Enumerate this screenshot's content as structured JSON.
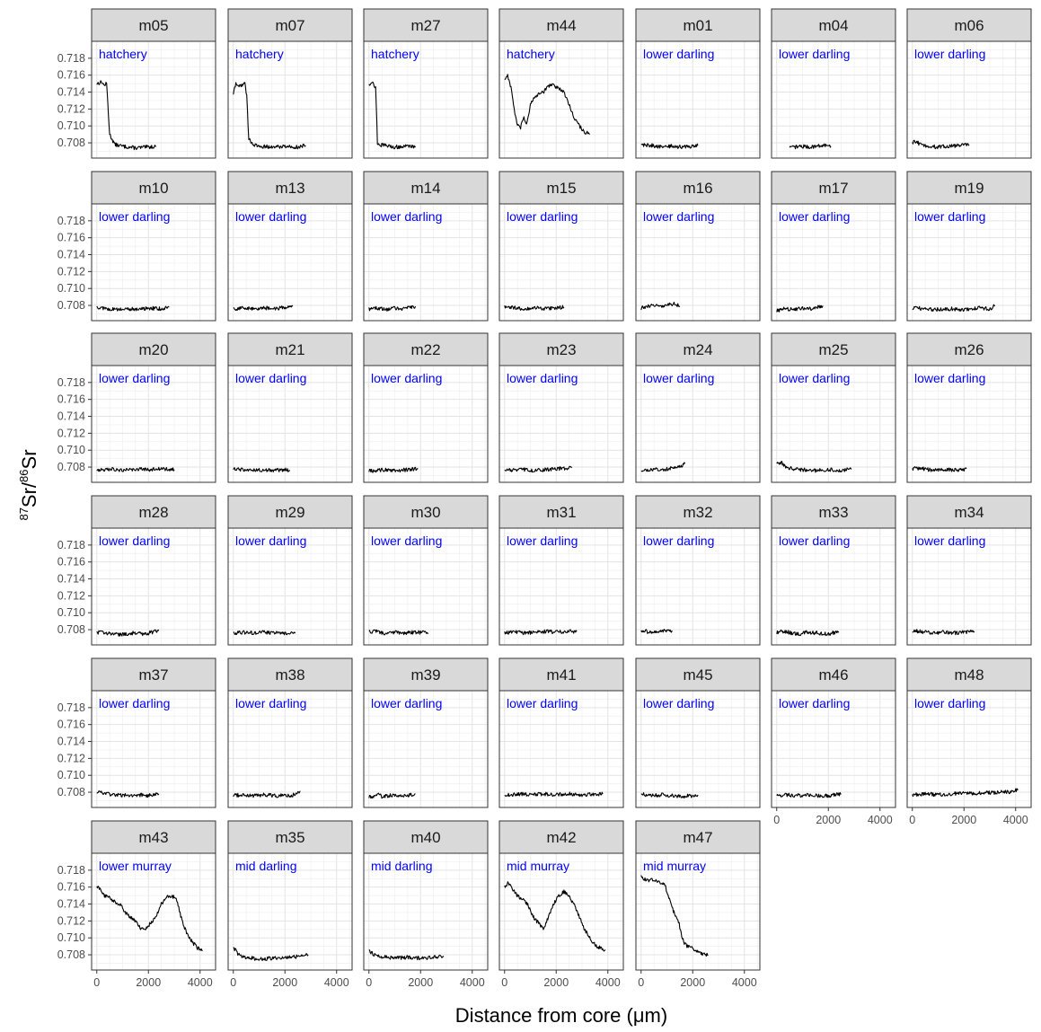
{
  "chart_data": {
    "type": "line",
    "facet_layout": "wrap",
    "ncol": 7,
    "xlabel": "Distance from core (μm)",
    "ylabel": "87Sr/86Sr",
    "ylabel_parts": {
      "iso1": "87",
      "el1": "Sr/",
      "iso2": "86",
      "el2": "Sr"
    },
    "xlim": [
      -200,
      4600
    ],
    "ylim": [
      0.7062,
      0.72
    ],
    "x_ticks": [
      0,
      2000,
      4000
    ],
    "x_tick_labels": [
      "0",
      "2000",
      "4000"
    ],
    "y_ticks": [
      0.708,
      0.71,
      0.712,
      0.714,
      0.716,
      0.718
    ],
    "y_tick_labels": [
      "0.708",
      "0.710",
      "0.712",
      "0.714",
      "0.716",
      "0.718"
    ],
    "grid": true,
    "line_color": "#000000",
    "label_color": "#0000ff",
    "strip_fill": "#d9d9d9",
    "panels": [
      {
        "id": "m05",
        "label": "hatchery",
        "x": [
          0,
          200,
          280,
          380,
          500,
          700,
          1000,
          1500,
          2000,
          2300
        ],
        "y": [
          0.715,
          0.7152,
          0.7148,
          0.715,
          0.709,
          0.7078,
          0.7076,
          0.7074,
          0.7075,
          0.7076
        ]
      },
      {
        "id": "m07",
        "label": "hatchery",
        "x": [
          0,
          100,
          200,
          450,
          520,
          600,
          800,
          1000,
          1500,
          2000,
          2500,
          2800
        ],
        "y": [
          0.7138,
          0.715,
          0.7147,
          0.715,
          0.7135,
          0.7085,
          0.7077,
          0.7076,
          0.7075,
          0.7076,
          0.7075,
          0.7077
        ]
      },
      {
        "id": "m27",
        "label": "hatchery",
        "x": [
          0,
          150,
          260,
          330,
          400,
          600,
          800,
          1000,
          1500,
          1800
        ],
        "y": [
          0.715,
          0.7151,
          0.7145,
          0.708,
          0.7078,
          0.7077,
          0.7076,
          0.7075,
          0.7076,
          0.7076
        ]
      },
      {
        "id": "m44",
        "label": "hatchery",
        "x": [
          0,
          120,
          250,
          400,
          500,
          620,
          750,
          850,
          1000,
          1200,
          1500,
          1800,
          2000,
          2300,
          2500,
          2700,
          2900,
          3100,
          3300
        ],
        "y": [
          0.7155,
          0.716,
          0.7145,
          0.7115,
          0.71,
          0.7098,
          0.711,
          0.7102,
          0.7125,
          0.7135,
          0.714,
          0.715,
          0.7146,
          0.714,
          0.7125,
          0.711,
          0.71,
          0.7093,
          0.709
        ]
      },
      {
        "id": "m01",
        "label": "lower darling",
        "x": [
          0,
          400,
          800,
          1200,
          1600,
          2000,
          2200
        ],
        "y": [
          0.7078,
          0.7077,
          0.7075,
          0.7076,
          0.7075,
          0.7076,
          0.7077
        ]
      },
      {
        "id": "m04",
        "label": "lower darling",
        "x": [
          500,
          900,
          1300,
          1700,
          2100
        ],
        "y": [
          0.7074,
          0.7076,
          0.7075,
          0.7077,
          0.7076
        ]
      },
      {
        "id": "m06",
        "label": "lower darling",
        "x": [
          0,
          150,
          300,
          600,
          1000,
          1400,
          1800,
          2200
        ],
        "y": [
          0.708,
          0.7082,
          0.7078,
          0.7076,
          0.7075,
          0.7076,
          0.7077,
          0.7078
        ]
      },
      {
        "id": "m10",
        "label": "lower darling",
        "x": [
          0,
          400,
          800,
          1200,
          1600,
          2000,
          2400,
          2800
        ],
        "y": [
          0.7078,
          0.7076,
          0.7075,
          0.7076,
          0.7075,
          0.7077,
          0.7076,
          0.7078
        ]
      },
      {
        "id": "m13",
        "label": "lower darling",
        "x": [
          0,
          400,
          800,
          1200,
          1600,
          2000,
          2300
        ],
        "y": [
          0.7076,
          0.7077,
          0.7076,
          0.7077,
          0.7076,
          0.7078,
          0.7079
        ]
      },
      {
        "id": "m14",
        "label": "lower darling",
        "x": [
          0,
          300,
          600,
          1000,
          1400,
          1800
        ],
        "y": [
          0.7076,
          0.7077,
          0.7075,
          0.7077,
          0.7076,
          0.7079
        ]
      },
      {
        "id": "m15",
        "label": "lower darling",
        "x": [
          0,
          400,
          800,
          1200,
          1600,
          2000,
          2300
        ],
        "y": [
          0.7078,
          0.7077,
          0.7076,
          0.7077,
          0.7076,
          0.7077,
          0.7078
        ]
      },
      {
        "id": "m16",
        "label": "lower darling",
        "x": [
          0,
          200,
          400,
          700,
          1000,
          1300,
          1500
        ],
        "y": [
          0.7077,
          0.7078,
          0.708,
          0.7079,
          0.7081,
          0.7082,
          0.7079
        ]
      },
      {
        "id": "m17",
        "label": "lower darling",
        "x": [
          0,
          300,
          600,
          900,
          1200,
          1500,
          1800
        ],
        "y": [
          0.7074,
          0.7076,
          0.7075,
          0.7077,
          0.7076,
          0.7077,
          0.7079
        ]
      },
      {
        "id": "m19",
        "label": "lower darling",
        "x": [
          0,
          500,
          1000,
          1500,
          2000,
          2500,
          3000,
          3200
        ],
        "y": [
          0.7077,
          0.7076,
          0.7075,
          0.7076,
          0.7075,
          0.7077,
          0.7076,
          0.708
        ]
      },
      {
        "id": "m20",
        "label": "lower darling",
        "x": [
          0,
          500,
          1000,
          1500,
          2000,
          2500,
          3000
        ],
        "y": [
          0.7077,
          0.7078,
          0.7076,
          0.7078,
          0.7077,
          0.7078,
          0.7077
        ]
      },
      {
        "id": "m21",
        "label": "lower darling",
        "x": [
          0,
          400,
          800,
          1200,
          1600,
          2000,
          2200
        ],
        "y": [
          0.7078,
          0.7077,
          0.7076,
          0.7077,
          0.7076,
          0.7077,
          0.7076
        ]
      },
      {
        "id": "m22",
        "label": "lower darling",
        "x": [
          0,
          300,
          700,
          1100,
          1500,
          1900
        ],
        "y": [
          0.7075,
          0.7076,
          0.7077,
          0.7076,
          0.7077,
          0.7078
        ]
      },
      {
        "id": "m23",
        "label": "lower darling",
        "x": [
          0,
          400,
          800,
          1200,
          1600,
          2000,
          2600
        ],
        "y": [
          0.7077,
          0.7076,
          0.7077,
          0.7076,
          0.7077,
          0.7078,
          0.7079
        ]
      },
      {
        "id": "m24",
        "label": "lower darling",
        "x": [
          0,
          300,
          600,
          900,
          1200,
          1500,
          1700
        ],
        "y": [
          0.7075,
          0.7077,
          0.7078,
          0.7077,
          0.7079,
          0.708,
          0.7084
        ]
      },
      {
        "id": "m25",
        "label": "lower darling",
        "x": [
          0,
          200,
          350,
          600,
          1000,
          1500,
          2000,
          2500,
          2900
        ],
        "y": [
          0.7084,
          0.7085,
          0.708,
          0.7078,
          0.7077,
          0.7076,
          0.7077,
          0.7076,
          0.7078
        ]
      },
      {
        "id": "m26",
        "label": "lower darling",
        "x": [
          0,
          300,
          600,
          1000,
          1400,
          1800,
          2100
        ],
        "y": [
          0.7078,
          0.7079,
          0.7077,
          0.7076,
          0.7077,
          0.7076,
          0.7078
        ]
      },
      {
        "id": "m28",
        "label": "lower darling",
        "x": [
          0,
          300,
          600,
          1000,
          1400,
          1800,
          2200,
          2400
        ],
        "y": [
          0.7077,
          0.7076,
          0.7075,
          0.7074,
          0.7076,
          0.7075,
          0.7077,
          0.708
        ]
      },
      {
        "id": "m29",
        "label": "lower darling",
        "x": [
          0,
          400,
          800,
          1200,
          1600,
          2000,
          2400
        ],
        "y": [
          0.7076,
          0.7077,
          0.7076,
          0.7077,
          0.7076,
          0.7075,
          0.7077
        ]
      },
      {
        "id": "m30",
        "label": "lower darling",
        "x": [
          0,
          300,
          600,
          1000,
          1400,
          1800,
          2300
        ],
        "y": [
          0.7077,
          0.7078,
          0.7076,
          0.7077,
          0.7076,
          0.7077,
          0.7076
        ]
      },
      {
        "id": "m31",
        "label": "lower darling",
        "x": [
          0,
          400,
          800,
          1200,
          1600,
          2000,
          2800
        ],
        "y": [
          0.7076,
          0.7077,
          0.7076,
          0.7077,
          0.7078,
          0.7077,
          0.7078
        ]
      },
      {
        "id": "m32",
        "label": "lower darling",
        "x": [
          0,
          200,
          400,
          600,
          800,
          1200
        ],
        "y": [
          0.7077,
          0.7078,
          0.7076,
          0.7077,
          0.7078,
          0.7079
        ]
      },
      {
        "id": "m33",
        "label": "lower darling",
        "x": [
          0,
          300,
          600,
          900,
          1200,
          1600,
          2000,
          2400
        ],
        "y": [
          0.7077,
          0.7078,
          0.7076,
          0.7075,
          0.7077,
          0.7076,
          0.7075,
          0.7078
        ]
      },
      {
        "id": "m34",
        "label": "lower darling",
        "x": [
          0,
          250,
          500,
          800,
          1200,
          1600,
          2000,
          2400
        ],
        "y": [
          0.7079,
          0.7078,
          0.7077,
          0.7076,
          0.7077,
          0.7076,
          0.7077,
          0.7078
        ]
      },
      {
        "id": "m37",
        "label": "lower darling",
        "x": [
          0,
          200,
          400,
          800,
          1200,
          1600,
          2000,
          2400
        ],
        "y": [
          0.708,
          0.7079,
          0.7078,
          0.7077,
          0.7076,
          0.7077,
          0.7076,
          0.7078
        ]
      },
      {
        "id": "m38",
        "label": "lower darling",
        "x": [
          0,
          400,
          800,
          1200,
          1600,
          2000,
          2400,
          2600
        ],
        "y": [
          0.7076,
          0.7077,
          0.7076,
          0.7077,
          0.7076,
          0.7076,
          0.7077,
          0.7081
        ]
      },
      {
        "id": "m39",
        "label": "lower darling",
        "x": [
          0,
          200,
          350,
          500,
          700,
          1000,
          1400,
          1800
        ],
        "y": [
          0.7074,
          0.7076,
          0.7078,
          0.7075,
          0.7076,
          0.7077,
          0.7076,
          0.7078
        ]
      },
      {
        "id": "m41",
        "label": "lower darling",
        "x": [
          0,
          500,
          1000,
          1500,
          2000,
          2500,
          3000,
          3800
        ],
        "y": [
          0.7077,
          0.7078,
          0.7077,
          0.7078,
          0.7077,
          0.7078,
          0.7077,
          0.7078
        ]
      },
      {
        "id": "m45",
        "label": "lower darling",
        "x": [
          0,
          200,
          400,
          800,
          1200,
          1600,
          2000,
          2200
        ],
        "y": [
          0.7078,
          0.7077,
          0.7076,
          0.7077,
          0.7076,
          0.7075,
          0.7076,
          0.7077
        ]
      },
      {
        "id": "m46",
        "label": "lower darling",
        "x": [
          0,
          400,
          800,
          1200,
          1600,
          2000,
          2500
        ],
        "y": [
          0.7076,
          0.7077,
          0.7076,
          0.7077,
          0.7076,
          0.7076,
          0.7078
        ]
      },
      {
        "id": "m48",
        "label": "lower darling",
        "x": [
          0,
          500,
          1000,
          1500,
          2000,
          2500,
          2800,
          3200,
          3500,
          3800,
          4100
        ],
        "y": [
          0.7077,
          0.7078,
          0.7077,
          0.7078,
          0.7079,
          0.7078,
          0.708,
          0.7079,
          0.7081,
          0.708,
          0.7083
        ]
      },
      {
        "id": "m43",
        "label": "lower murray",
        "x": [
          0,
          150,
          300,
          500,
          700,
          900,
          1100,
          1300,
          1500,
          1700,
          1900,
          2100,
          2300,
          2500,
          2700,
          2900,
          3100,
          3300,
          3500,
          3700,
          3900,
          4100
        ],
        "y": [
          0.716,
          0.7158,
          0.715,
          0.7148,
          0.7142,
          0.714,
          0.713,
          0.7125,
          0.712,
          0.7112,
          0.711,
          0.7118,
          0.7125,
          0.714,
          0.7148,
          0.715,
          0.7145,
          0.712,
          0.7105,
          0.7095,
          0.7088,
          0.7085
        ]
      },
      {
        "id": "m35",
        "label": "mid darling",
        "x": [
          0,
          100,
          200,
          400,
          700,
          1000,
          1500,
          2000,
          2500,
          2900
        ],
        "y": [
          0.7088,
          0.7085,
          0.708,
          0.7077,
          0.7076,
          0.7075,
          0.7076,
          0.7077,
          0.7078,
          0.708
        ]
      },
      {
        "id": "m40",
        "label": "mid darling",
        "x": [
          0,
          100,
          200,
          400,
          700,
          1000,
          1500,
          2000,
          2500,
          2900
        ],
        "y": [
          0.7084,
          0.7083,
          0.708,
          0.7078,
          0.7077,
          0.7076,
          0.7077,
          0.7076,
          0.7077,
          0.7078
        ]
      },
      {
        "id": "m42",
        "label": "mid murray",
        "x": [
          0,
          150,
          300,
          500,
          700,
          900,
          1100,
          1300,
          1500,
          1700,
          1900,
          2100,
          2300,
          2500,
          2700,
          2900,
          3100,
          3300,
          3500,
          3700,
          3900
        ],
        "y": [
          0.716,
          0.7165,
          0.7158,
          0.715,
          0.7145,
          0.714,
          0.7125,
          0.7118,
          0.711,
          0.7125,
          0.714,
          0.715,
          0.7155,
          0.7148,
          0.714,
          0.7125,
          0.711,
          0.71,
          0.7092,
          0.7088,
          0.7086
        ]
      },
      {
        "id": "m47",
        "label": "mid murray",
        "x": [
          0,
          100,
          250,
          450,
          650,
          850,
          950,
          1050,
          1150,
          1250,
          1350,
          1450,
          1550,
          1650,
          1800,
          2000,
          2200,
          2400,
          2600
        ],
        "y": [
          0.7172,
          0.717,
          0.7168,
          0.7168,
          0.7166,
          0.7165,
          0.716,
          0.715,
          0.714,
          0.7132,
          0.7125,
          0.712,
          0.7105,
          0.7095,
          0.709,
          0.7088,
          0.7083,
          0.708,
          0.708
        ]
      }
    ]
  }
}
